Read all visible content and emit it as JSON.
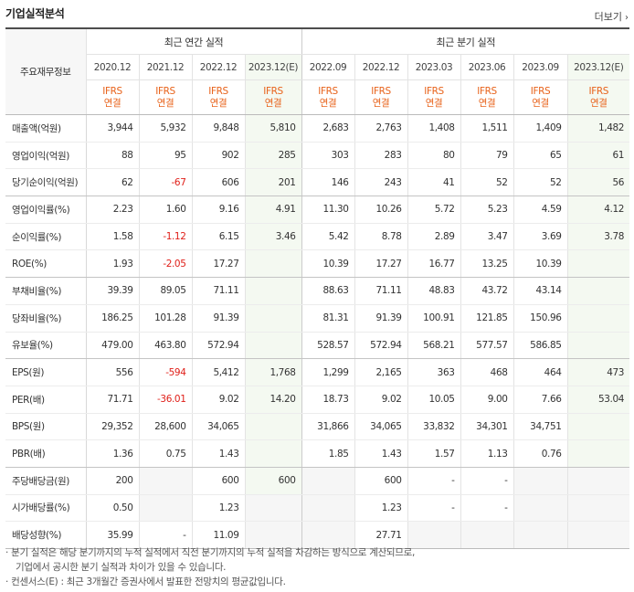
{
  "header": {
    "title": "기업실적분석",
    "more_label": "더보기"
  },
  "table": {
    "row_header_label": "주요재무정보",
    "group_annual": "최근 연간 실적",
    "group_quarter": "최근 분기 실적",
    "periods": [
      "2020.12",
      "2021.12",
      "2022.12",
      "2023.12(E)",
      "2022.09",
      "2022.12",
      "2023.03",
      "2023.06",
      "2023.09",
      "2023.12(E)"
    ],
    "ifrs_line1": "IFRS",
    "ifrs_line2": "연결",
    "rows": [
      {
        "label": "매출액(억원)",
        "values": [
          "3,944",
          "5,932",
          "9,848",
          "5,810",
          "2,683",
          "2,763",
          "1,408",
          "1,511",
          "1,409",
          "1,482"
        ]
      },
      {
        "label": "영업이익(억원)",
        "values": [
          "88",
          "95",
          "902",
          "285",
          "303",
          "283",
          "80",
          "79",
          "65",
          "61"
        ]
      },
      {
        "label": "당기순이익(억원)",
        "values": [
          "62",
          "-67",
          "606",
          "201",
          "146",
          "243",
          "41",
          "52",
          "52",
          "56"
        ]
      },
      {
        "label": "영업이익률(%)",
        "values": [
          "2.23",
          "1.60",
          "9.16",
          "4.91",
          "11.30",
          "10.26",
          "5.72",
          "5.23",
          "4.59",
          "4.12"
        ]
      },
      {
        "label": "순이익률(%)",
        "values": [
          "1.58",
          "-1.12",
          "6.15",
          "3.46",
          "5.42",
          "8.78",
          "2.89",
          "3.47",
          "3.69",
          "3.78"
        ]
      },
      {
        "label": "ROE(%)",
        "values": [
          "1.93",
          "-2.05",
          "17.27",
          "",
          "10.39",
          "17.27",
          "16.77",
          "13.25",
          "10.39",
          ""
        ]
      },
      {
        "label": "부채비율(%)",
        "values": [
          "39.39",
          "89.05",
          "71.11",
          "",
          "88.63",
          "71.11",
          "48.83",
          "43.72",
          "43.14",
          ""
        ]
      },
      {
        "label": "당좌비율(%)",
        "values": [
          "186.25",
          "101.28",
          "91.39",
          "",
          "81.31",
          "91.39",
          "100.91",
          "121.85",
          "150.96",
          ""
        ]
      },
      {
        "label": "유보율(%)",
        "values": [
          "479.00",
          "463.80",
          "572.94",
          "",
          "528.57",
          "572.94",
          "568.21",
          "577.57",
          "586.85",
          ""
        ]
      },
      {
        "label": "EPS(원)",
        "values": [
          "556",
          "-594",
          "5,412",
          "1,768",
          "1,299",
          "2,165",
          "363",
          "468",
          "464",
          "473"
        ]
      },
      {
        "label": "PER(배)",
        "values": [
          "71.71",
          "-36.01",
          "9.02",
          "14.20",
          "18.73",
          "9.02",
          "10.05",
          "9.00",
          "7.66",
          "53.04"
        ]
      },
      {
        "label": "BPS(원)",
        "values": [
          "29,352",
          "28,600",
          "34,065",
          "",
          "31,866",
          "34,065",
          "33,832",
          "34,301",
          "34,751",
          ""
        ]
      },
      {
        "label": "PBR(배)",
        "values": [
          "1.36",
          "0.75",
          "1.43",
          "",
          "1.85",
          "1.43",
          "1.57",
          "1.13",
          "0.76",
          ""
        ]
      },
      {
        "label": "주당배당금(원)",
        "values": [
          "200",
          "",
          "600",
          "600",
          "",
          "600",
          "-",
          "-",
          "",
          ""
        ]
      },
      {
        "label": "시가배당률(%)",
        "values": [
          "0.50",
          "",
          "1.23",
          "",
          "",
          "1.23",
          "-",
          "-",
          "",
          ""
        ]
      },
      {
        "label": "배당성향(%)",
        "values": [
          "35.99",
          "-",
          "11.09",
          "",
          "",
          "27.71",
          "",
          "",
          "",
          ""
        ]
      }
    ],
    "empty_cells": [
      [
        3,
        ""
      ],
      [
        13,
        1
      ],
      [
        13,
        4
      ],
      [
        13,
        8
      ],
      [
        13,
        9
      ],
      [
        14,
        1
      ],
      [
        14,
        3
      ],
      [
        14,
        4
      ],
      [
        14,
        8
      ],
      [
        14,
        9
      ],
      [
        15,
        3
      ],
      [
        15,
        4
      ],
      [
        15,
        6
      ],
      [
        15,
        7
      ],
      [
        15,
        8
      ],
      [
        15,
        9
      ]
    ]
  },
  "notes": {
    "line1": "분기 실적은 해당 분기까지의 누적 실적에서 직전 분기까지의 누적 실적을 차감하는 방식으로 계산되므로,",
    "line2": "기업에서 공시한 분기 실적과 차이가 있을 수 있습니다.",
    "line3": "컨센서스(E) : 최근 3개월간 증권사에서 발표한 전망치의 평균값입니다."
  },
  "colors": {
    "ifrs": "#e8621a",
    "negative": "#e0201a",
    "estimate_bg": "#f4f9f1"
  }
}
